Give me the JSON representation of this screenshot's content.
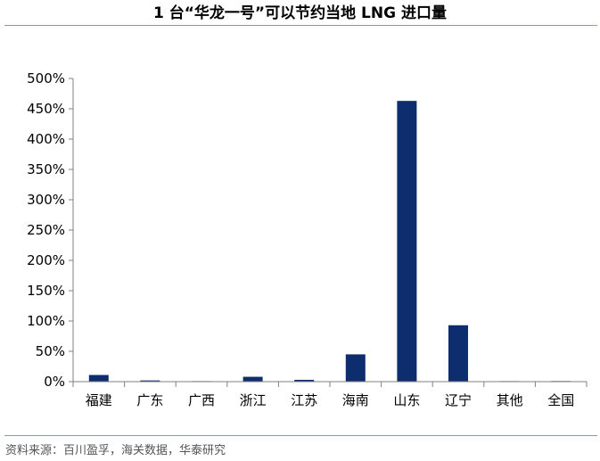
{
  "title": "1 台“华龙一号”可以节约当地 LNG 进口量",
  "source": "资料来源：百川盈孚，海关数据，华泰研究",
  "colors": {
    "bar": "#0e2d6e",
    "rule": "#7a9cc6",
    "axis": "#7f7f7f"
  },
  "chart_data": {
    "type": "bar",
    "title": "1 台“华龙一号”可以节约当地 LNG 进口量",
    "xlabel": "",
    "ylabel": "",
    "categories": [
      "福建",
      "广东",
      "广西",
      "浙江",
      "江苏",
      "海南",
      "山东",
      "辽宁",
      "其他",
      "全国"
    ],
    "values": [
      11,
      2,
      0.3,
      8,
      3,
      45,
      463,
      93,
      0.5,
      1
    ],
    "ylim": [
      0,
      500
    ],
    "yticks": [
      0,
      50,
      100,
      150,
      200,
      250,
      300,
      350,
      400,
      450,
      500
    ],
    "ytick_labels": [
      "0%",
      "50%",
      "100%",
      "150%",
      "200%",
      "250%",
      "300%",
      "350%",
      "400%",
      "450%",
      "500%"
    ],
    "grid": false,
    "legend": "none"
  }
}
